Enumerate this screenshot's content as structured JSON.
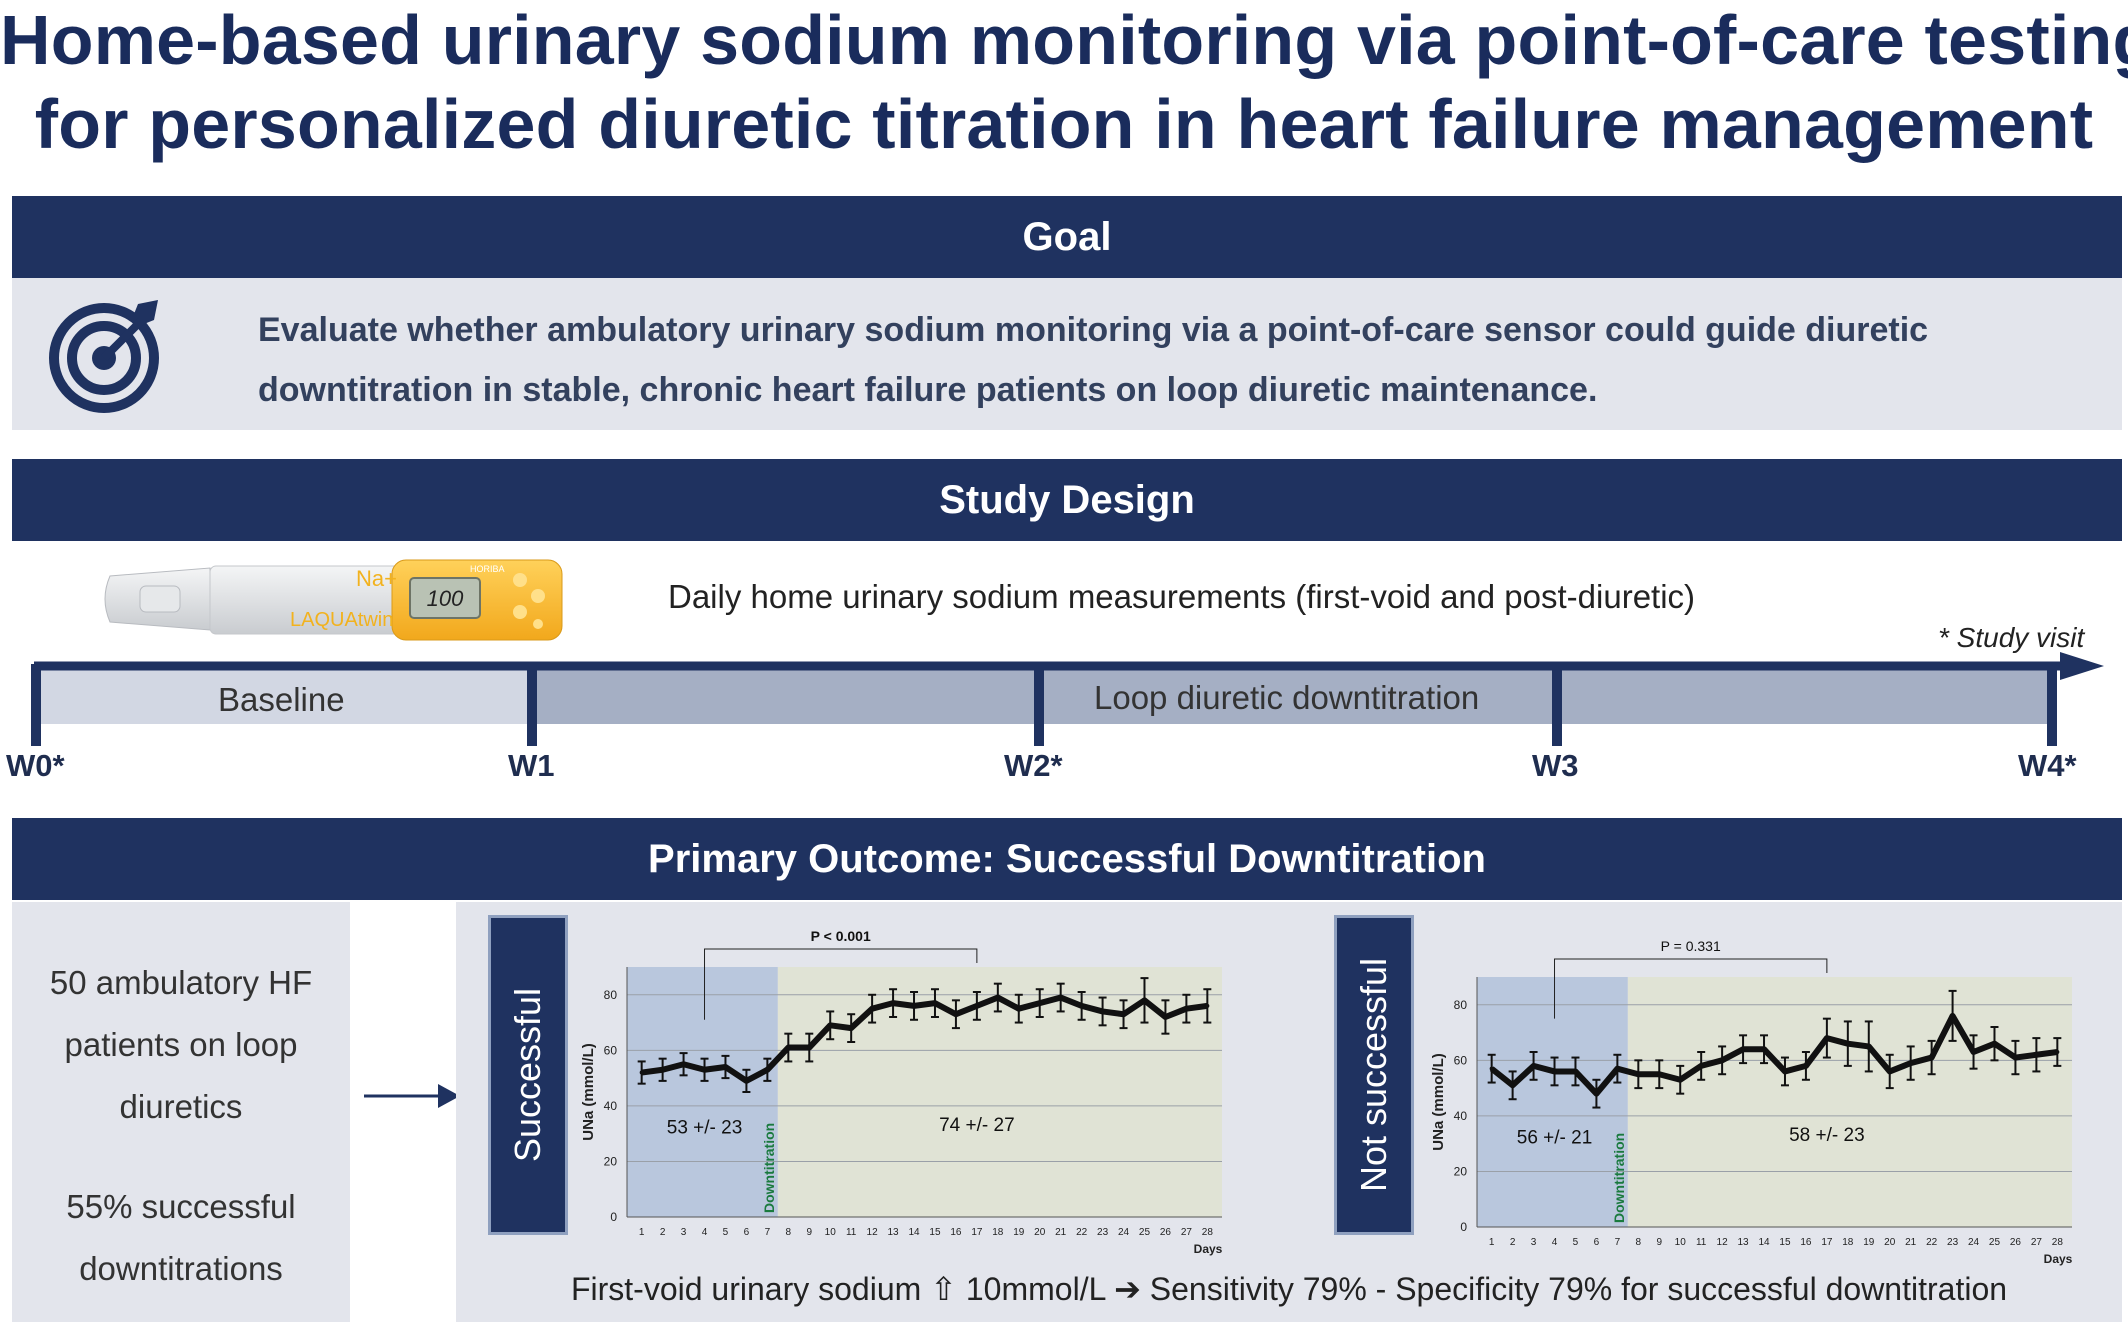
{
  "title": {
    "line1": "Home-based urinary sodium monitoring via point-of-care testing",
    "line2": "for personalized diuretic titration in heart failure management"
  },
  "goal": {
    "heading": "Goal",
    "text": "Evaluate whether ambulatory urinary sodium monitoring via a point-of-care sensor could guide diuretic downtitration in stable, chronic heart failure patients on loop diuretic maintenance.",
    "icon": "target-icon"
  },
  "design": {
    "heading": "Study Design",
    "device": {
      "brand": "HORIBA",
      "name": "LAQUAtwin",
      "reading": "100",
      "unit": "Na+",
      "icon": "sodium-meter-image"
    },
    "description": "Daily home urinary sodium measurements (first-void and post-diuretic)",
    "note": "* Study visit",
    "phases": [
      "Baseline",
      "Loop diuretic downtitration"
    ],
    "weeks": [
      "W0*",
      "W1",
      "W2*",
      "W3",
      "W4*"
    ]
  },
  "outcome": {
    "heading": "Primary Outcome: Successful Downtitration",
    "patients": [
      "50 ambulatory HF",
      "patients on loop",
      "diuretics"
    ],
    "success_rate": [
      "55% successful",
      "downtitrations"
    ],
    "footer": "First-void urinary sodium ⇧ 10mmol/L ➔ Sensitivity 79% - Specificity 79% for successful downtitration"
  },
  "chart_data": [
    {
      "type": "line",
      "panel_label": "Successful",
      "ylabel": "UNa (mmol/L)",
      "xlabel": "Days",
      "ylim": [
        0,
        90
      ],
      "yticks": [
        0,
        20,
        40,
        60,
        80
      ],
      "x": [
        1,
        2,
        3,
        4,
        5,
        6,
        7,
        8,
        9,
        10,
        11,
        12,
        13,
        14,
        15,
        16,
        17,
        18,
        19,
        20,
        21,
        22,
        23,
        24,
        25,
        26,
        27,
        28
      ],
      "values": [
        52,
        53,
        55,
        53,
        54,
        49,
        53,
        61,
        61,
        69,
        68,
        75,
        77,
        76,
        77,
        73,
        76,
        79,
        75,
        77,
        79,
        76,
        74,
        73,
        78,
        72,
        75,
        76
      ],
      "errors": [
        4,
        4,
        4,
        4,
        4,
        4,
        4,
        5,
        5,
        5,
        5,
        5,
        5,
        5,
        5,
        5,
        5,
        5,
        5,
        5,
        5,
        5,
        5,
        5,
        8,
        6,
        5,
        6
      ],
      "downtitration_day": 7.5,
      "downtitration_label": "Downtitration",
      "significance": "P < 0.001",
      "annotations": [
        "53 +/- 23",
        "74 +/- 27"
      ],
      "colors": {
        "baseline": "#b9c7dd",
        "downtitration": "#e0e3d5",
        "marker": "#1a7a3e"
      }
    },
    {
      "type": "line",
      "panel_label": "Not successful",
      "ylabel": "UNa (mmol/L)",
      "xlabel": "Days",
      "ylim": [
        0,
        90
      ],
      "yticks": [
        0,
        20,
        40,
        60,
        80
      ],
      "x": [
        1,
        2,
        3,
        4,
        5,
        6,
        7,
        8,
        9,
        10,
        11,
        12,
        13,
        14,
        15,
        16,
        17,
        18,
        19,
        20,
        21,
        22,
        23,
        24,
        25,
        26,
        27,
        28
      ],
      "values": [
        57,
        51,
        58,
        56,
        56,
        48,
        57,
        55,
        55,
        53,
        58,
        60,
        64,
        64,
        56,
        58,
        68,
        66,
        65,
        56,
        59,
        61,
        76,
        63,
        66,
        61,
        62,
        63
      ],
      "errors": [
        5,
        5,
        5,
        5,
        5,
        5,
        5,
        5,
        5,
        5,
        5,
        5,
        5,
        5,
        5,
        5,
        7,
        8,
        9,
        6,
        6,
        6,
        9,
        6,
        6,
        6,
        6,
        5
      ],
      "downtitration_day": 7.5,
      "downtitration_label": "Downtitration",
      "significance": "P = 0.331",
      "annotations": [
        "56 +/- 21",
        "58 +/- 23"
      ],
      "colors": {
        "baseline": "#b9c7dd",
        "downtitration": "#e0e3d5",
        "marker": "#1a7a3e"
      }
    }
  ]
}
